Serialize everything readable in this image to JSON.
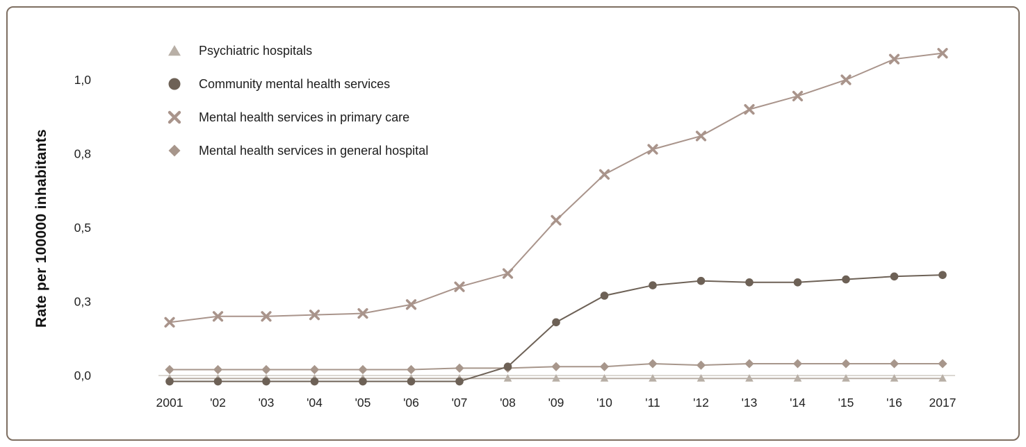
{
  "style": {
    "frame_border_color": "#7d6e61",
    "background_color": "#ffffff",
    "axis_line_color": "#cfcac4",
    "text_color": "#222222"
  },
  "chart_data": {
    "type": "line",
    "title": "",
    "xlabel": "",
    "ylabel": "Rate per 100000 inhabitants",
    "grid": false,
    "legend_position": "top-left",
    "ylim": [
      -0.05,
      1.12
    ],
    "categories": [
      "2001",
      "'02",
      "'03",
      "'04",
      "'05",
      "'06",
      "'07",
      "'08",
      "'09",
      "'10",
      "'11",
      "'12",
      "'13",
      "'14",
      "'15",
      "'16",
      "2017"
    ],
    "y_ticks": {
      "labels": [
        "1,0",
        "0,8",
        "0,5",
        "0,3",
        "0,0"
      ],
      "values": [
        1.0,
        0.75,
        0.5,
        0.25,
        0.0
      ]
    },
    "series": [
      {
        "name": "Psychiatric hospitals",
        "marker": "triangle",
        "color": "#b8afa6",
        "values": [
          -0.01,
          -0.01,
          -0.01,
          -0.01,
          -0.01,
          -0.01,
          -0.01,
          -0.01,
          -0.01,
          -0.01,
          -0.01,
          -0.01,
          -0.01,
          -0.01,
          -0.01,
          -0.01,
          -0.01
        ]
      },
      {
        "name": "Community mental health services",
        "marker": "circle",
        "color": "#6d6156",
        "values": [
          -0.02,
          -0.02,
          -0.02,
          -0.02,
          -0.02,
          -0.02,
          -0.02,
          0.03,
          0.18,
          0.27,
          0.305,
          0.32,
          0.315,
          0.315,
          0.325,
          0.335,
          0.34
        ]
      },
      {
        "name": "Mental health services in primary care",
        "marker": "x",
        "color": "#a9948b",
        "values": [
          0.18,
          0.2,
          0.2,
          0.205,
          0.21,
          0.24,
          0.3,
          0.345,
          0.525,
          0.68,
          0.765,
          0.81,
          0.9,
          0.945,
          1.0,
          1.07,
          1.09
        ]
      },
      {
        "name": "Mental health services in general hospital",
        "marker": "diamond",
        "color": "#a7968b",
        "values": [
          0.02,
          0.02,
          0.02,
          0.02,
          0.02,
          0.02,
          0.025,
          0.025,
          0.03,
          0.03,
          0.04,
          0.035,
          0.04,
          0.04,
          0.04,
          0.04,
          0.04
        ]
      }
    ]
  }
}
